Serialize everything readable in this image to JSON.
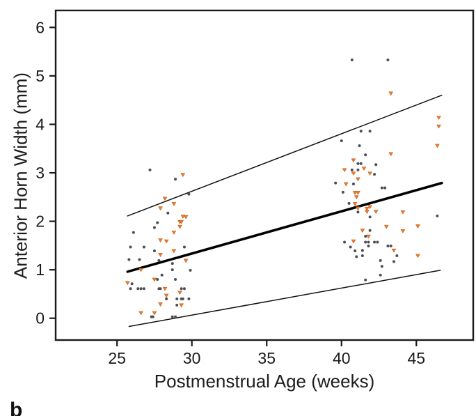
{
  "figure": {
    "panel_label": "b",
    "background": "#ffffff"
  },
  "chart_data": {
    "type": "scatter",
    "title": "",
    "xlabel": "Postmenstrual Age (weeks)",
    "ylabel": "Anterior Horn Width (mm)",
    "xlim": [
      20.9,
      48.8
    ],
    "ylim": [
      -0.45,
      6.35
    ],
    "x_ticks": [
      25,
      30,
      35,
      40,
      45
    ],
    "y_ticks": [
      0,
      1,
      2,
      3,
      4,
      5,
      6
    ],
    "grid": false,
    "legend": "none",
    "axis_color": "#1a1a1a",
    "tick_label_size": 23,
    "series": [
      {
        "name": "gray-dots",
        "marker": "circle",
        "color": "#4b4e55",
        "points": [
          [
            27.2,
            3.06
          ],
          [
            28.9,
            2.87
          ],
          [
            29.8,
            2.56
          ],
          [
            28.4,
            2.17
          ],
          [
            27.7,
            1.97
          ],
          [
            27.5,
            1.87
          ],
          [
            26.1,
            1.77
          ],
          [
            25.9,
            1.47
          ],
          [
            26.8,
            1.47
          ],
          [
            29.5,
            1.47
          ],
          [
            27.5,
            1.39
          ],
          [
            25.8,
            1.21
          ],
          [
            26.5,
            1.21
          ],
          [
            27.8,
            1.19
          ],
          [
            28.7,
            1.13
          ],
          [
            28.7,
            1.0
          ],
          [
            29.9,
            0.99
          ],
          [
            28.0,
            0.89
          ],
          [
            27.7,
            0.8
          ],
          [
            28.9,
            0.8
          ],
          [
            26.0,
            0.71
          ],
          [
            25.9,
            0.61
          ],
          [
            26.4,
            0.61
          ],
          [
            26.6,
            0.61
          ],
          [
            26.8,
            0.61
          ],
          [
            27.8,
            0.61
          ],
          [
            27.9,
            0.61
          ],
          [
            29.3,
            0.61
          ],
          [
            29.5,
            0.61
          ],
          [
            28.3,
            0.4
          ],
          [
            29.0,
            0.4
          ],
          [
            29.3,
            0.4
          ],
          [
            29.4,
            0.4
          ],
          [
            29.8,
            0.4
          ],
          [
            29.0,
            0.27
          ],
          [
            27.3,
            0.03
          ],
          [
            27.4,
            0.03
          ],
          [
            28.7,
            0.03
          ],
          [
            28.9,
            0.03
          ],
          [
            40.7,
            5.33
          ],
          [
            43.1,
            5.33
          ],
          [
            41.3,
            3.86
          ],
          [
            41.9,
            3.86
          ],
          [
            40.0,
            3.66
          ],
          [
            41.2,
            3.56
          ],
          [
            41.6,
            3.37
          ],
          [
            41.1,
            3.19
          ],
          [
            41.3,
            3.19
          ],
          [
            42.3,
            3.17
          ],
          [
            40.7,
            3.06
          ],
          [
            41.1,
            3.06
          ],
          [
            42.2,
            2.97
          ],
          [
            39.6,
            2.79
          ],
          [
            40.8,
            2.77
          ],
          [
            42.7,
            2.69
          ],
          [
            42.9,
            2.69
          ],
          [
            40.1,
            2.6
          ],
          [
            40.5,
            2.37
          ],
          [
            41.1,
            2.19
          ],
          [
            46.4,
            2.11
          ],
          [
            41.9,
            2.09
          ],
          [
            41.9,
            1.81
          ],
          [
            41.6,
            1.69
          ],
          [
            40.2,
            1.57
          ],
          [
            41.6,
            1.57
          ],
          [
            41.8,
            1.57
          ],
          [
            42.2,
            1.57
          ],
          [
            42.4,
            1.57
          ],
          [
            41.8,
            1.49
          ],
          [
            43.1,
            1.49
          ],
          [
            43.3,
            1.49
          ],
          [
            40.6,
            1.47
          ],
          [
            41.4,
            1.4
          ],
          [
            40.9,
            1.39
          ],
          [
            41.4,
            1.29
          ],
          [
            43.7,
            1.29
          ],
          [
            41.0,
            1.27
          ],
          [
            42.6,
            1.19
          ],
          [
            43.5,
            1.17
          ],
          [
            42.7,
            1.07
          ],
          [
            42.6,
            0.89
          ],
          [
            41.6,
            0.79
          ]
        ]
      },
      {
        "name": "orange-triangles",
        "marker": "triangle-down",
        "color": "#ED7D31",
        "edge_color": "#C55A11",
        "points": [
          [
            29.4,
            2.96
          ],
          [
            28.2,
            2.47
          ],
          [
            28.8,
            2.36
          ],
          [
            27.9,
            2.27
          ],
          [
            29.4,
            2.1
          ],
          [
            29.6,
            2.09
          ],
          [
            29.2,
            1.99
          ],
          [
            29.3,
            1.99
          ],
          [
            29.2,
            1.89
          ],
          [
            28.8,
            1.77
          ],
          [
            27.9,
            1.61
          ],
          [
            28.3,
            1.59
          ],
          [
            28.8,
            1.39
          ],
          [
            27.9,
            1.31
          ],
          [
            29.6,
            1.19
          ],
          [
            26.6,
            1.0
          ],
          [
            27.5,
            0.8
          ],
          [
            25.7,
            0.73
          ],
          [
            28.2,
            0.61
          ],
          [
            29.2,
            0.53
          ],
          [
            28.3,
            0.47
          ],
          [
            27.9,
            0.29
          ],
          [
            29.3,
            0.27
          ],
          [
            26.6,
            0.11
          ],
          [
            27.5,
            0.11
          ],
          [
            43.3,
            4.64
          ],
          [
            46.5,
            4.14
          ],
          [
            46.5,
            3.96
          ],
          [
            46.4,
            3.56
          ],
          [
            43.3,
            3.39
          ],
          [
            40.8,
            3.26
          ],
          [
            41.5,
            3.09
          ],
          [
            40.2,
            3.06
          ],
          [
            40.8,
            2.99
          ],
          [
            41.9,
            2.99
          ],
          [
            41.1,
            2.87
          ],
          [
            40.3,
            2.77
          ],
          [
            40.9,
            2.59
          ],
          [
            41.1,
            2.59
          ],
          [
            41.0,
            2.5
          ],
          [
            40.9,
            2.36
          ],
          [
            41.9,
            2.3
          ],
          [
            41.1,
            2.27
          ],
          [
            41.7,
            2.26
          ],
          [
            41.7,
            2.2
          ],
          [
            42.3,
            2.2
          ],
          [
            44.1,
            2.19
          ],
          [
            45.1,
            1.9
          ],
          [
            43.0,
            1.89
          ],
          [
            41.4,
            1.81
          ],
          [
            44.1,
            1.8
          ],
          [
            41.8,
            1.69
          ],
          [
            40.8,
            1.59
          ],
          [
            43.5,
            1.4
          ],
          [
            45.1,
            1.29
          ]
        ]
      }
    ],
    "lines": [
      {
        "name": "regression-line",
        "color": "#000000",
        "width": 3.6,
        "x1": 25.7,
        "y1": 0.96,
        "x2": 46.7,
        "y2": 2.79
      },
      {
        "name": "upper-prediction-line",
        "color": "#111111",
        "width": 1.5,
        "x1": 25.7,
        "y1": 2.11,
        "x2": 46.7,
        "y2": 4.6
      },
      {
        "name": "lower-prediction-line",
        "color": "#111111",
        "width": 1.5,
        "x1": 25.8,
        "y1": -0.17,
        "x2": 46.6,
        "y2": 0.99
      }
    ]
  }
}
